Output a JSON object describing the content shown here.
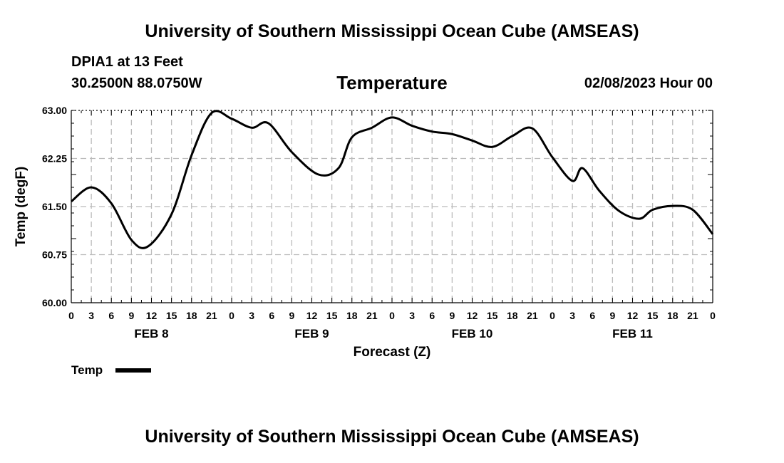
{
  "header": {
    "title": "University of Southern Mississippi Ocean Cube (AMSEAS)",
    "station": "DPIA1 at 13 Feet",
    "coords": "30.2500N  88.0750W",
    "variable": "Temperature",
    "date": "02/08/2023 Hour 00"
  },
  "footer": {
    "title": "University of Southern Mississippi Ocean Cube (AMSEAS)"
  },
  "colors": {
    "line": "#000000",
    "grid": "#bbbbbb",
    "background": "#ffffff"
  },
  "chart_data": {
    "type": "line",
    "title": "Temperature",
    "xlabel": "Forecast (Z)",
    "ylabel": "Temp (degF)",
    "ylim": [
      60.0,
      63.0
    ],
    "xlim": [
      0,
      96
    ],
    "y_ticks": [
      "60.00",
      "60.75",
      "61.50",
      "62.25",
      "63.00"
    ],
    "y_tick_values": [
      60.0,
      60.75,
      61.5,
      62.25,
      63.0
    ],
    "x_tick_labels": [
      "0",
      "3",
      "6",
      "9",
      "12",
      "15",
      "18",
      "21",
      "0",
      "3",
      "6",
      "9",
      "12",
      "15",
      "18",
      "21",
      "0",
      "3",
      "6",
      "9",
      "12",
      "15",
      "18",
      "21",
      "0",
      "3",
      "6",
      "9",
      "12",
      "15",
      "18",
      "21",
      "0"
    ],
    "day_labels": [
      {
        "label": "FEB 8",
        "center_hour": 12
      },
      {
        "label": "FEB 9",
        "center_hour": 36
      },
      {
        "label": "FEB 10",
        "center_hour": 60
      },
      {
        "label": "FEB 11",
        "center_hour": 84
      }
    ],
    "grid": true,
    "legend": {
      "label": "Temp",
      "position": "bottom-left"
    },
    "series": [
      {
        "name": "Temp",
        "x": [
          0,
          3,
          6,
          9,
          11.5,
          15,
          18,
          21,
          24,
          27,
          29.5,
          33,
          37,
          40,
          42,
          45,
          48,
          51,
          54,
          57,
          60,
          63,
          66,
          69,
          72,
          75,
          76.5,
          79,
          82,
          85,
          87,
          90,
          93,
          96
        ],
        "y": [
          61.58,
          61.8,
          61.55,
          60.98,
          60.88,
          61.38,
          62.3,
          62.96,
          62.87,
          62.73,
          62.8,
          62.35,
          62.0,
          62.1,
          62.58,
          62.73,
          62.89,
          62.76,
          62.67,
          62.63,
          62.53,
          62.43,
          62.6,
          62.72,
          62.27,
          61.9,
          62.1,
          61.75,
          61.43,
          61.31,
          61.45,
          61.51,
          61.45,
          61.07
        ]
      }
    ]
  }
}
